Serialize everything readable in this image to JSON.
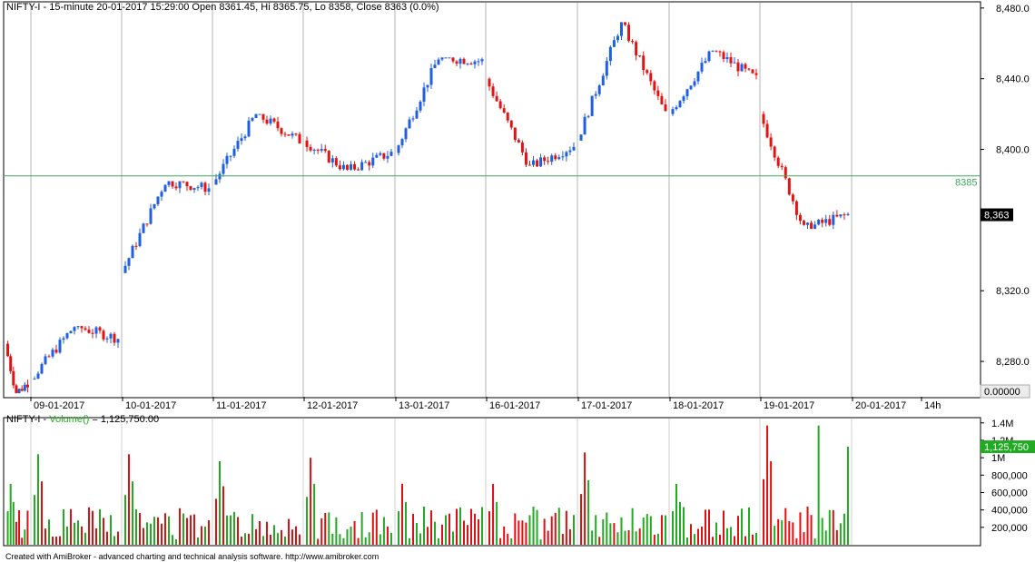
{
  "chart_data": [
    {
      "type": "candlestick",
      "title": "NIFTY-I - 15-minute 20-01-2017 15:29:00 Open 8361.45, Hi 8365.75, Lo 8358, Close 8363 (0.0%)",
      "date_labels": [
        "09-01-2017",
        "10-01-2017",
        "11-01-2017",
        "12-01-2017",
        "13-01-2017",
        "16-01-2017",
        "17-01-2017",
        "18-01-2017",
        "19-01-2017",
        "20-01-2017",
        "14h"
      ],
      "y_ticks": [
        {
          "value": 8480,
          "label": "8,480.0"
        },
        {
          "value": 8440,
          "label": "8,440.0"
        },
        {
          "value": 8400,
          "label": "8,400.0"
        },
        {
          "value": 8320,
          "label": "8,320.0"
        },
        {
          "value": 8280,
          "label": "8,280.0"
        }
      ],
      "y_zero_label": "0.00000",
      "ylim": [
        8260,
        8483
      ],
      "reference_line": {
        "value": 8385,
        "label": "8385",
        "color": "#3caa5a"
      },
      "last_price": {
        "value": 8363,
        "label": "8,363"
      },
      "up_color": "#1f5fe0",
      "down_color": "#e01414",
      "key_closes": [
        {
          "day": "09-01-2017",
          "open": 8290,
          "high": 8296,
          "low": 8262,
          "close": 8268
        },
        {
          "day": "10-01-2017",
          "open": 8270,
          "high": 8300,
          "low": 8270,
          "close": 8293
        },
        {
          "day": "11-01-2017",
          "open": 8330,
          "high": 8382,
          "low": 8330,
          "close": 8378
        },
        {
          "day": "12-01-2017",
          "open": 8380,
          "high": 8420,
          "low": 8380,
          "close": 8405
        },
        {
          "day": "13-01-2017",
          "open": 8405,
          "high": 8456,
          "low": 8388,
          "close": 8398
        },
        {
          "day": "16-01-2017",
          "open": 8398,
          "high": 8452,
          "low": 8385,
          "close": 8450
        },
        {
          "day": "17-01-2017",
          "open": 8440,
          "high": 8446,
          "low": 8390,
          "close": 8402
        },
        {
          "day": "18-01-2017",
          "open": 8405,
          "high": 8472,
          "low": 8405,
          "close": 8420
        },
        {
          "day": "19-01-2017",
          "open": 8420,
          "high": 8456,
          "low": 8410,
          "close": 8440
        },
        {
          "day": "20-01-2017",
          "open": 8420,
          "high": 8433,
          "low": 8355,
          "close": 8363
        }
      ]
    },
    {
      "type": "bar",
      "title": "NIFTY-I - Volume() = 1,125,750.00",
      "title_prefix": "NIFTY-I - ",
      "title_series": "Volume()",
      "title_value": " = 1,125,750.00",
      "y_ticks": [
        {
          "value": 1400000,
          "label": "1.4M"
        },
        {
          "value": 1200000,
          "label": "1.2M"
        },
        {
          "value": 1000000,
          "label": "1M"
        },
        {
          "value": 800000,
          "label": "800,000"
        },
        {
          "value": 600000,
          "label": "600,000"
        },
        {
          "value": 400000,
          "label": "400,000"
        },
        {
          "value": 200000,
          "label": "200,000"
        }
      ],
      "ylim": [
        0,
        1450000
      ],
      "last_value": {
        "value": 1125750,
        "label": "1,125,750"
      },
      "up_color": "#22aa22",
      "down_color": "#dd1111",
      "notable_values": [
        {
          "day": "10-01-2017",
          "value": 1040000
        },
        {
          "day": "11-01-2017",
          "value": 1040000
        },
        {
          "day": "12-01-2017",
          "value": 960000
        },
        {
          "day": "13-01-2017",
          "value": 1000000
        },
        {
          "day": "18-01-2017",
          "value": 1060000
        },
        {
          "day": "20-01-2017",
          "value": 1370000
        },
        {
          "day": "20-01-2017",
          "value": 1125750
        }
      ]
    }
  ],
  "footer": {
    "text": "Created with AmiBroker - advanced charting and technical analysis software. http://www.amibroker.com"
  }
}
